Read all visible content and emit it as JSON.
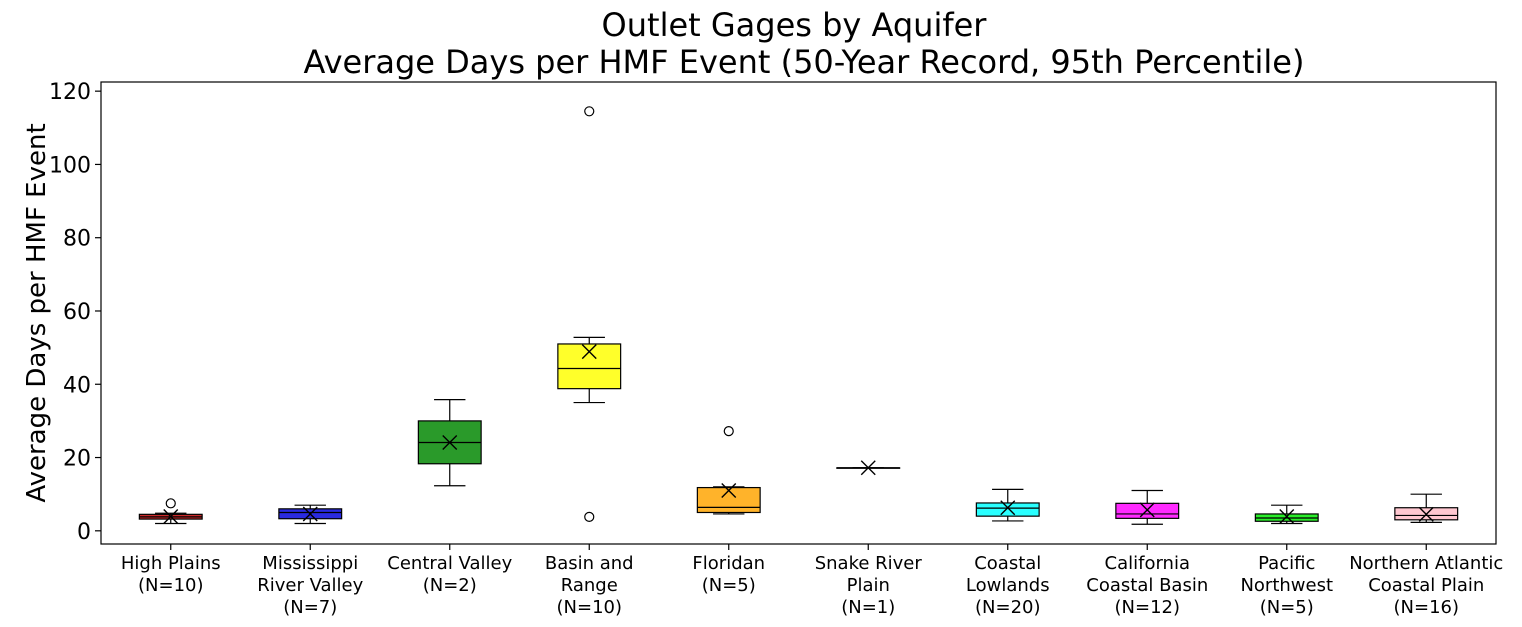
{
  "chart_data": {
    "type": "box",
    "title": "Outlet Gages by Aquifer",
    "subtitle": "Average Days per HMF Event (50-Year Record, 95th Percentile)",
    "xlabel": "",
    "ylabel": "Average Days per HMF Event",
    "ylim": [
      -3.6,
      122.5
    ],
    "yticks": [
      0,
      20,
      40,
      60,
      80,
      100,
      120
    ],
    "grid": false,
    "legend": "none",
    "mean_marker": "x",
    "categories": [
      [
        "High Plains",
        "(N=10)"
      ],
      [
        "Mississippi",
        "River Valley",
        "(N=7)"
      ],
      [
        "Central Valley",
        "(N=2)"
      ],
      [
        "Basin and",
        "Range",
        "(N=10)"
      ],
      [
        "Floridan",
        "(N=5)"
      ],
      [
        "Snake River",
        "Plain",
        "(N=1)"
      ],
      [
        "Coastal",
        "Lowlands",
        "(N=20)"
      ],
      [
        "California",
        "Coastal Basin",
        "(N=12)"
      ],
      [
        "Pacific",
        "Northwest",
        "(N=5)"
      ],
      [
        "Northern Atlantic",
        "Coastal Plain",
        "(N=16)"
      ]
    ],
    "boxes": [
      {
        "color": "#cc2a2a",
        "whislo": 2.0,
        "q1": 3.2,
        "med": 3.8,
        "q3": 4.5,
        "whishi": 4.8,
        "mean": 3.9,
        "fliers": [
          7.5
        ]
      },
      {
        "color": "#2a2ae0",
        "whislo": 2.0,
        "q1": 3.3,
        "med": 5.0,
        "q3": 6.0,
        "whishi": 7.0,
        "mean": 4.6,
        "fliers": []
      },
      {
        "color": "#2a9a2a",
        "whislo": 12.3,
        "q1": 18.3,
        "med": 24.1,
        "q3": 30.0,
        "whishi": 35.8,
        "mean": 24.1,
        "fliers": []
      },
      {
        "color": "#ffff2a",
        "whislo": 35.0,
        "q1": 38.8,
        "med": 44.3,
        "q3": 51.0,
        "whishi": 52.8,
        "mean": 48.9,
        "fliers": [
          114.5,
          3.8
        ]
      },
      {
        "color": "#ffb32a",
        "whislo": 4.6,
        "q1": 5.0,
        "med": 6.4,
        "q3": 11.8,
        "whishi": 12.0,
        "mean": 11.0,
        "fliers": [
          27.2
        ]
      },
      {
        "color": "#cccccc",
        "whislo": 17.2,
        "q1": 17.2,
        "med": 17.2,
        "q3": 17.2,
        "whishi": 17.2,
        "mean": 17.2,
        "fliers": []
      },
      {
        "color": "#2affff",
        "whislo": 2.7,
        "q1": 4.0,
        "med": 6.2,
        "q3": 7.6,
        "whishi": 11.3,
        "mean": 6.3,
        "fliers": []
      },
      {
        "color": "#ff2aff",
        "whislo": 1.8,
        "q1": 3.4,
        "med": 4.6,
        "q3": 7.5,
        "whishi": 11.0,
        "mean": 5.7,
        "fliers": []
      },
      {
        "color": "#2aee2a",
        "whislo": 2.0,
        "q1": 2.6,
        "med": 3.5,
        "q3": 4.6,
        "whishi": 7.0,
        "mean": 3.9,
        "fliers": []
      },
      {
        "color": "#ffc7d0",
        "whislo": 2.3,
        "q1": 3.0,
        "med": 4.2,
        "q3": 6.3,
        "whishi": 10.0,
        "mean": 4.5,
        "fliers": []
      }
    ]
  }
}
